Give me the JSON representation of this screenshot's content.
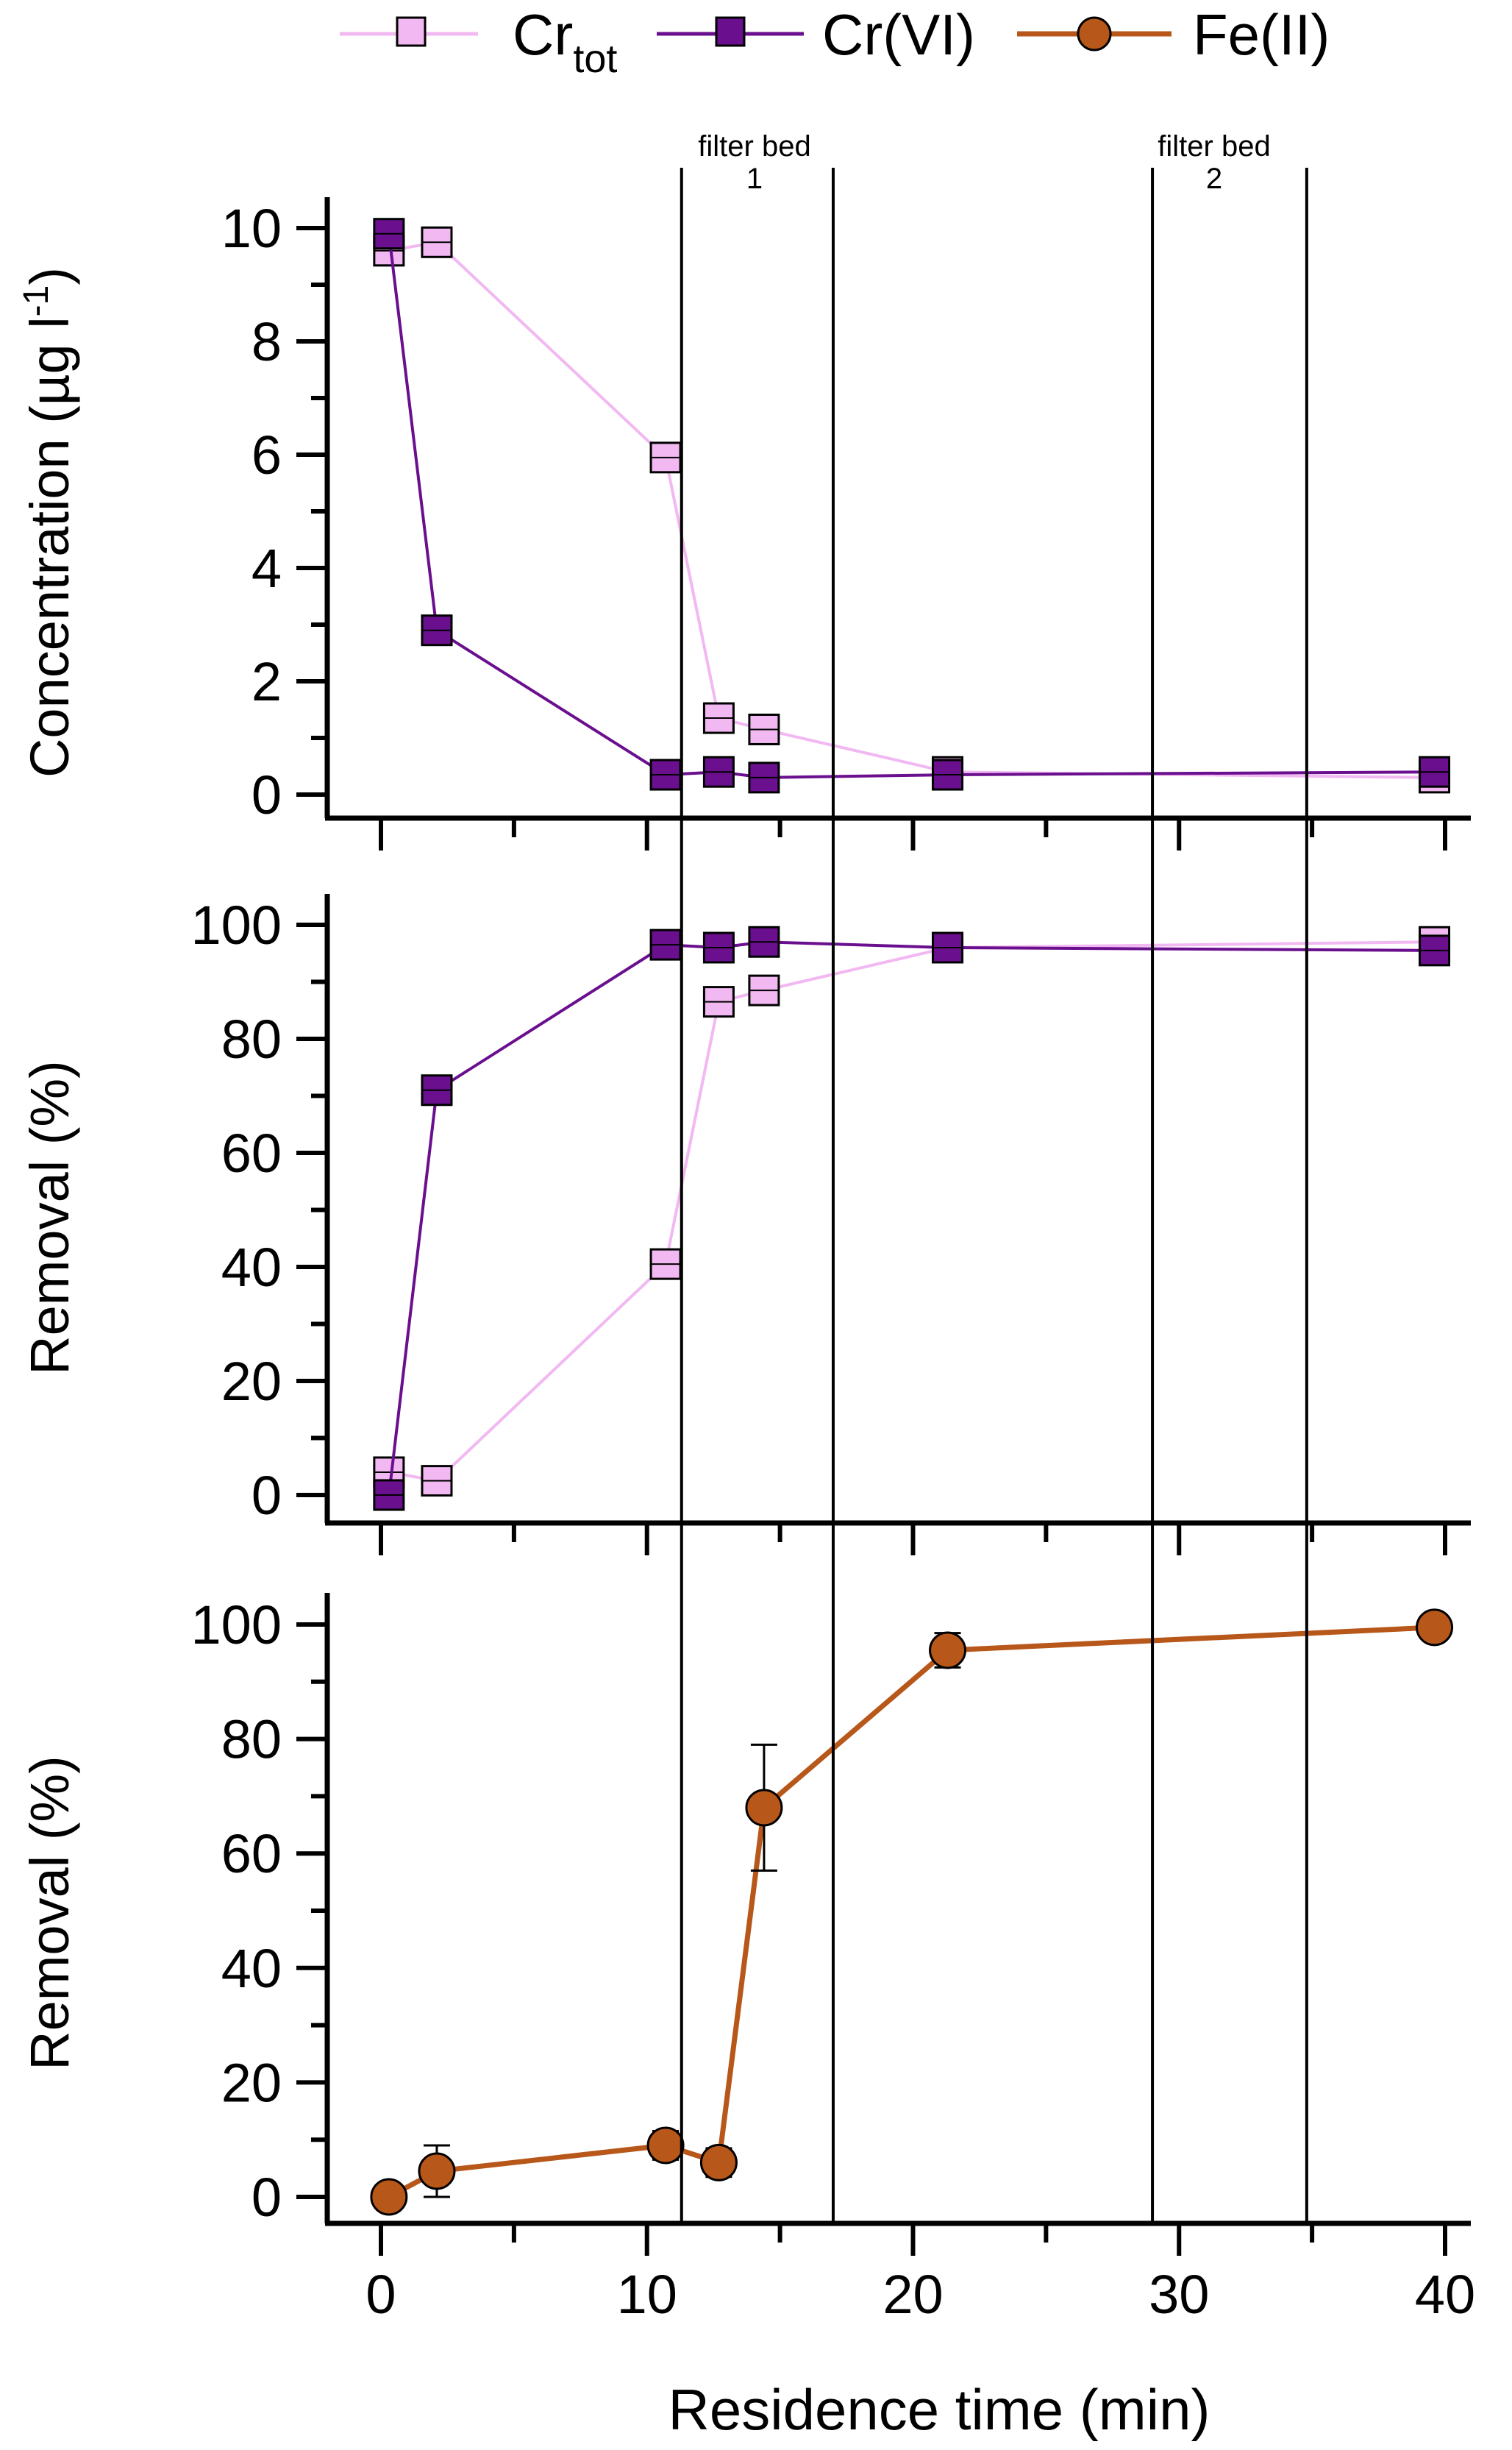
{
  "legend": {
    "entries": [
      {
        "label": "Cr",
        "sub": "tot",
        "color": "#f2b8f2",
        "marker": "square",
        "stroke": "#000"
      },
      {
        "label": "Cr(VI)",
        "sub": "",
        "color": "#6a0f8e",
        "marker": "square",
        "stroke": "#000"
      },
      {
        "label": "Fe(II)",
        "sub": "",
        "color": "#b8571a",
        "marker": "circle",
        "stroke": "#000"
      }
    ]
  },
  "annotations": {
    "bed1_line1": "filter bed",
    "bed1_line2": "1",
    "bed2_line1": "filter bed",
    "bed2_line2": "2"
  },
  "filter_beds": [
    {
      "name": "filter bed 1",
      "start": 11.3,
      "end": 17.0
    },
    {
      "name": "filter bed 2",
      "start": 29.0,
      "end": 34.8
    }
  ],
  "chart_data": [
    {
      "type": "line",
      "ylabel": "Concentration (µg l",
      "ylabel_sup": "-1",
      "ylabel_end": ")",
      "xlim": [
        -2,
        42
      ],
      "ylim": [
        -0.5,
        11
      ],
      "yticks": [
        0,
        2,
        4,
        6,
        8,
        10
      ],
      "series": [
        {
          "name": "Crtot",
          "color": "#f2b8f2",
          "marker": "square",
          "x": [
            0.3,
            2.1,
            10.7,
            12.7,
            14.4,
            21.3,
            39.6
          ],
          "y": [
            9.6,
            9.75,
            5.95,
            1.35,
            1.15,
            0.4,
            0.3
          ]
        },
        {
          "name": "Cr(VI)",
          "color": "#6a0f8e",
          "marker": "square",
          "x": [
            0.3,
            2.1,
            10.7,
            12.7,
            14.4,
            21.3,
            39.6
          ],
          "y": [
            9.9,
            2.9,
            0.35,
            0.4,
            0.3,
            0.35,
            0.4
          ]
        }
      ]
    },
    {
      "type": "line",
      "ylabel": "Removal (%)",
      "xlim": [
        -2,
        42
      ],
      "ylim": [
        -4,
        104
      ],
      "yticks": [
        0,
        20,
        40,
        60,
        80,
        100
      ],
      "series": [
        {
          "name": "Crtot",
          "color": "#f2b8f2",
          "marker": "square",
          "x": [
            0.3,
            2.1,
            10.7,
            12.7,
            14.4,
            21.3,
            39.6
          ],
          "y": [
            4,
            2.5,
            40.5,
            86.5,
            88.5,
            96,
            97
          ]
        },
        {
          "name": "Cr(VI)",
          "color": "#6a0f8e",
          "marker": "square",
          "x": [
            0.3,
            2.1,
            10.7,
            12.7,
            14.4,
            21.3,
            39.6
          ],
          "y": [
            0,
            71,
            96.5,
            96,
            97,
            96,
            95.5
          ]
        }
      ]
    },
    {
      "type": "line",
      "ylabel": "Removal (%)",
      "xlabel": "Residence time (min)",
      "xlim": [
        -2,
        42
      ],
      "ylim": [
        -4,
        104
      ],
      "yticks": [
        0,
        20,
        40,
        60,
        80,
        100
      ],
      "xticks": [
        0,
        10,
        20,
        30,
        40
      ],
      "series": [
        {
          "name": "Fe(II)",
          "color": "#b8571a",
          "marker": "circle",
          "x": [
            0.3,
            2.1,
            10.7,
            12.7,
            14.4,
            21.3,
            39.6
          ],
          "y": [
            0,
            4.5,
            9,
            6,
            68,
            95.5,
            99.5
          ],
          "err": [
            0,
            4.5,
            2.5,
            2.5,
            11,
            3,
            1.5
          ]
        }
      ]
    }
  ]
}
